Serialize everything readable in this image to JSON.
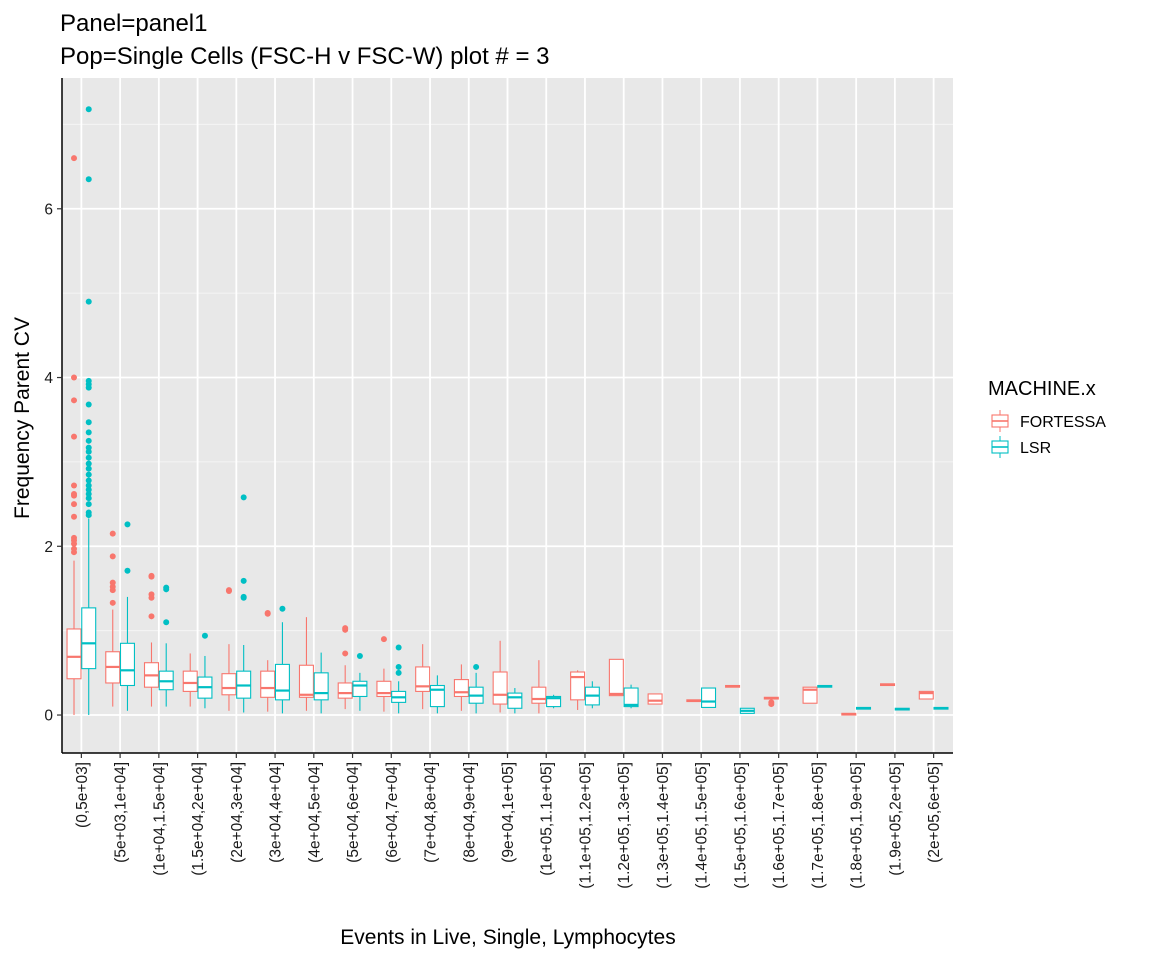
{
  "chart_data": {
    "type": "boxplot",
    "title": "Panel=panel1",
    "subtitle": "Pop=Single Cells (FSC-H v FSC-W) plot # = 3",
    "xlabel": "Events in Live, Single, Lymphocytes",
    "ylabel": "Frequency Parent CV",
    "ylim": [
      -0.45,
      7.55
    ],
    "yticks": [
      0,
      2,
      4,
      6
    ],
    "grid": true,
    "legend_title": "MACHINE.x",
    "legend_position": "right",
    "categories": [
      "(0,5e+03]",
      "(5e+03,1e+04]",
      "(1e+04,1.5e+04]",
      "(1.5e+04,2e+04]",
      "(2e+04,3e+04]",
      "(3e+04,4e+04]",
      "(4e+04,5e+04]",
      "(5e+04,6e+04]",
      "(6e+04,7e+04]",
      "(7e+04,8e+04]",
      "(8e+04,9e+04]",
      "(9e+04,1e+05]",
      "(1e+05,1.1e+05]",
      "(1.1e+05,1.2e+05]",
      "(1.2e+05,1.3e+05]",
      "(1.3e+05,1.4e+05]",
      "(1.4e+05,1.5e+05]",
      "(1.5e+05,1.6e+05]",
      "(1.6e+05,1.7e+05]",
      "(1.7e+05,1.8e+05]",
      "(1.8e+05,1.9e+05]",
      "(1.9e+05,2e+05]",
      "(2e+05,6e+05]"
    ],
    "series": [
      {
        "name": "FORTESSA",
        "color": "#F8766D",
        "boxes": [
          {
            "cat": 0,
            "q1": 0.43,
            "median": 0.69,
            "q3": 1.02,
            "lo": 0.0,
            "hi": 1.83,
            "outliers": [
              1.93,
              1.97,
              2.03,
              2.07,
              2.1,
              2.35,
              2.5,
              2.6,
              2.62,
              2.72,
              3.3,
              3.73,
              4.0,
              6.6
            ]
          },
          {
            "cat": 1,
            "q1": 0.38,
            "median": 0.57,
            "q3": 0.75,
            "lo": 0.1,
            "hi": 1.25,
            "outliers": [
              1.33,
              1.48,
              1.52,
              1.57,
              1.88,
              2.15
            ]
          },
          {
            "cat": 2,
            "q1": 0.33,
            "median": 0.47,
            "q3": 0.62,
            "lo": 0.1,
            "hi": 0.86,
            "outliers": [
              1.17,
              1.39,
              1.43,
              1.64,
              1.65
            ]
          },
          {
            "cat": 3,
            "q1": 0.28,
            "median": 0.38,
            "q3": 0.52,
            "lo": 0.1,
            "hi": 0.73,
            "outliers": []
          },
          {
            "cat": 4,
            "q1": 0.24,
            "median": 0.32,
            "q3": 0.49,
            "lo": 0.05,
            "hi": 0.84,
            "outliers": [
              1.47,
              1.48
            ]
          },
          {
            "cat": 5,
            "q1": 0.21,
            "median": 0.32,
            "q3": 0.52,
            "lo": 0.04,
            "hi": 0.65,
            "outliers": [
              1.2,
              1.21
            ]
          },
          {
            "cat": 6,
            "q1": 0.21,
            "median": 0.24,
            "q3": 0.59,
            "lo": 0.05,
            "hi": 1.16,
            "outliers": []
          },
          {
            "cat": 7,
            "q1": 0.2,
            "median": 0.26,
            "q3": 0.38,
            "lo": 0.07,
            "hi": 0.59,
            "outliers": [
              0.73,
              1.01,
              1.03
            ]
          },
          {
            "cat": 8,
            "q1": 0.22,
            "median": 0.26,
            "q3": 0.4,
            "lo": 0.04,
            "hi": 0.55,
            "outliers": [
              0.9
            ]
          },
          {
            "cat": 9,
            "q1": 0.28,
            "median": 0.34,
            "q3": 0.57,
            "lo": 0.07,
            "hi": 0.84,
            "outliers": []
          },
          {
            "cat": 10,
            "q1": 0.22,
            "median": 0.27,
            "q3": 0.42,
            "lo": 0.05,
            "hi": 0.6,
            "outliers": []
          },
          {
            "cat": 11,
            "q1": 0.13,
            "median": 0.24,
            "q3": 0.51,
            "lo": 0.03,
            "hi": 0.88,
            "outliers": []
          },
          {
            "cat": 12,
            "q1": 0.14,
            "median": 0.19,
            "q3": 0.33,
            "lo": 0.02,
            "hi": 0.65,
            "outliers": []
          },
          {
            "cat": 13,
            "q1": 0.18,
            "median": 0.45,
            "q3": 0.51,
            "lo": 0.06,
            "hi": 0.53,
            "outliers": []
          },
          {
            "cat": 14,
            "q1": 0.23,
            "median": 0.25,
            "q3": 0.66,
            "lo": 0.23,
            "hi": 0.66,
            "outliers": []
          },
          {
            "cat": 15,
            "q1": 0.13,
            "median": 0.17,
            "q3": 0.25,
            "lo": 0.13,
            "hi": 0.25,
            "outliers": []
          },
          {
            "cat": 16,
            "q1": 0.16,
            "median": 0.17,
            "q3": 0.18,
            "lo": 0.16,
            "hi": 0.18,
            "outliers": []
          },
          {
            "cat": 17,
            "q1": 0.33,
            "median": 0.34,
            "q3": 0.35,
            "lo": 0.33,
            "hi": 0.35,
            "outliers": []
          },
          {
            "cat": 18,
            "q1": 0.19,
            "median": 0.2,
            "q3": 0.21,
            "lo": 0.19,
            "hi": 0.21,
            "outliers": [
              0.13,
              0.15
            ]
          },
          {
            "cat": 19,
            "q1": 0.14,
            "median": 0.3,
            "q3": 0.33,
            "lo": 0.14,
            "hi": 0.33,
            "outliers": []
          },
          {
            "cat": 20,
            "q1": 0.0,
            "median": 0.01,
            "q3": 0.02,
            "lo": 0.0,
            "hi": 0.02,
            "outliers": []
          },
          {
            "cat": 21,
            "q1": 0.35,
            "median": 0.36,
            "q3": 0.37,
            "lo": 0.35,
            "hi": 0.37,
            "outliers": []
          },
          {
            "cat": 22,
            "q1": 0.19,
            "median": 0.26,
            "q3": 0.28,
            "lo": 0.19,
            "hi": 0.28,
            "outliers": []
          }
        ]
      },
      {
        "name": "LSR",
        "color": "#00BFC4",
        "boxes": [
          {
            "cat": 0,
            "q1": 0.55,
            "median": 0.85,
            "q3": 1.27,
            "lo": 0.0,
            "hi": 2.33,
            "outliers": [
              2.37,
              2.4,
              2.5,
              2.57,
              2.62,
              2.67,
              2.72,
              2.78,
              2.85,
              2.92,
              2.98,
              3.05,
              3.12,
              3.17,
              3.25,
              3.35,
              3.47,
              3.68,
              3.88,
              3.92,
              3.96,
              4.9,
              6.35,
              7.18
            ]
          },
          {
            "cat": 1,
            "q1": 0.35,
            "median": 0.53,
            "q3": 0.85,
            "lo": 0.05,
            "hi": 1.4,
            "outliers": [
              1.71,
              2.26
            ]
          },
          {
            "cat": 2,
            "q1": 0.3,
            "median": 0.4,
            "q3": 0.52,
            "lo": 0.1,
            "hi": 0.85,
            "outliers": [
              1.1,
              1.49,
              1.51
            ]
          },
          {
            "cat": 3,
            "q1": 0.2,
            "median": 0.33,
            "q3": 0.45,
            "lo": 0.08,
            "hi": 0.7,
            "outliers": [
              0.94
            ]
          },
          {
            "cat": 4,
            "q1": 0.2,
            "median": 0.35,
            "q3": 0.52,
            "lo": 0.03,
            "hi": 0.83,
            "outliers": [
              1.39,
              1.4,
              1.59,
              2.58
            ]
          },
          {
            "cat": 5,
            "q1": 0.18,
            "median": 0.29,
            "q3": 0.6,
            "lo": 0.02,
            "hi": 1.1,
            "outliers": [
              1.26
            ]
          },
          {
            "cat": 6,
            "q1": 0.18,
            "median": 0.26,
            "q3": 0.5,
            "lo": 0.02,
            "hi": 0.74,
            "outliers": []
          },
          {
            "cat": 7,
            "q1": 0.22,
            "median": 0.35,
            "q3": 0.4,
            "lo": 0.05,
            "hi": 0.5,
            "outliers": [
              0.7
            ]
          },
          {
            "cat": 8,
            "q1": 0.15,
            "median": 0.21,
            "q3": 0.28,
            "lo": 0.02,
            "hi": 0.4,
            "outliers": [
              0.5,
              0.57,
              0.8
            ]
          },
          {
            "cat": 9,
            "q1": 0.1,
            "median": 0.3,
            "q3": 0.35,
            "lo": 0.02,
            "hi": 0.47,
            "outliers": []
          },
          {
            "cat": 10,
            "q1": 0.14,
            "median": 0.23,
            "q3": 0.33,
            "lo": 0.02,
            "hi": 0.5,
            "outliers": [
              0.57
            ]
          },
          {
            "cat": 11,
            "q1": 0.08,
            "median": 0.21,
            "q3": 0.26,
            "lo": 0.02,
            "hi": 0.32,
            "outliers": []
          },
          {
            "cat": 12,
            "q1": 0.1,
            "median": 0.2,
            "q3": 0.22,
            "lo": 0.08,
            "hi": 0.24,
            "outliers": []
          },
          {
            "cat": 13,
            "q1": 0.12,
            "median": 0.23,
            "q3": 0.33,
            "lo": 0.08,
            "hi": 0.4,
            "outliers": []
          },
          {
            "cat": 14,
            "q1": 0.1,
            "median": 0.12,
            "q3": 0.32,
            "lo": 0.08,
            "hi": 0.36,
            "outliers": []
          },
          {
            "cat": 16,
            "q1": 0.09,
            "median": 0.16,
            "q3": 0.32,
            "lo": 0.09,
            "hi": 0.32,
            "outliers": []
          },
          {
            "cat": 17,
            "q1": 0.02,
            "median": 0.05,
            "q3": 0.08,
            "lo": 0.02,
            "hi": 0.08,
            "outliers": []
          },
          {
            "cat": 19,
            "q1": 0.33,
            "median": 0.34,
            "q3": 0.35,
            "lo": 0.33,
            "hi": 0.35,
            "outliers": []
          },
          {
            "cat": 20,
            "q1": 0.07,
            "median": 0.08,
            "q3": 0.09,
            "lo": 0.07,
            "hi": 0.09,
            "outliers": []
          },
          {
            "cat": 21,
            "q1": 0.06,
            "median": 0.07,
            "q3": 0.08,
            "lo": 0.06,
            "hi": 0.08,
            "outliers": []
          },
          {
            "cat": 22,
            "q1": 0.07,
            "median": 0.08,
            "q3": 0.09,
            "lo": 0.07,
            "hi": 0.09,
            "outliers": []
          }
        ]
      }
    ]
  }
}
